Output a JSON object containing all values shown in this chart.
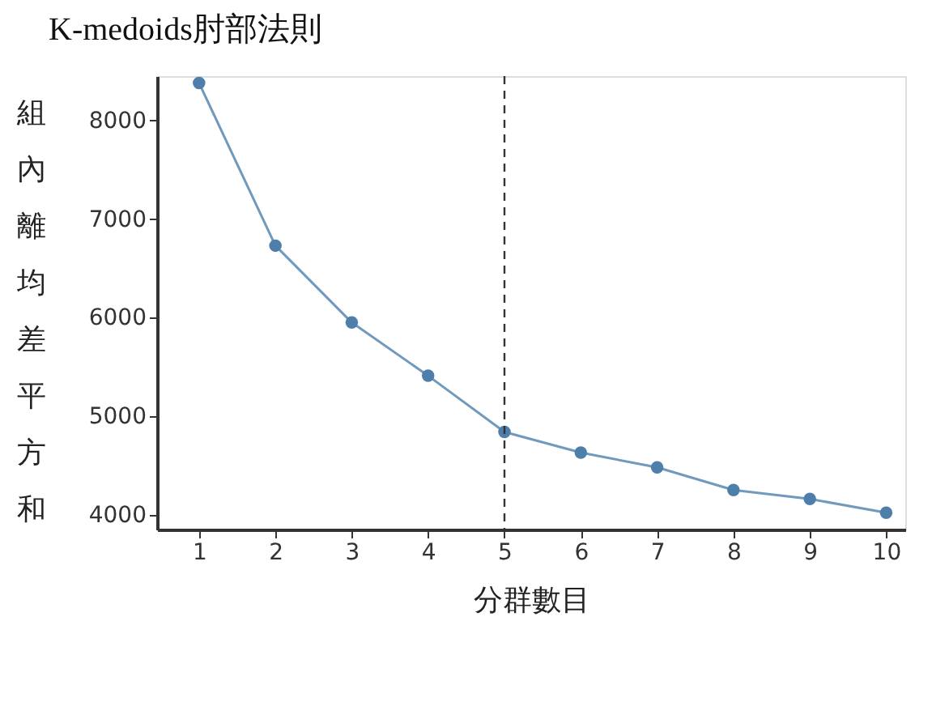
{
  "chart_data": {
    "type": "line",
    "title": "K-medoids肘部法則",
    "xlabel": "分群數目",
    "ylabel": "組內離均差平方和",
    "x": [
      1,
      2,
      3,
      4,
      5,
      6,
      7,
      8,
      9,
      10
    ],
    "series": [
      {
        "color": "#4e7fab",
        "values": [
          8380,
          6730,
          5950,
          5410,
          4840,
          4630,
          4480,
          4250,
          4160,
          4020
        ]
      }
    ],
    "xlim": [
      0.45,
      10.25
    ],
    "ylim": [
      3850,
      8450
    ],
    "xticks": [
      1,
      2,
      3,
      4,
      5,
      6,
      7,
      8,
      9,
      10
    ],
    "yticks": [
      4000,
      5000,
      6000,
      7000,
      8000
    ],
    "ref_lines": [
      {
        "axis": "x",
        "value": 5,
        "line_style": "dashed",
        "color": "#333333"
      }
    ],
    "marker": "circle",
    "line_style": "solid",
    "grid": false
  }
}
